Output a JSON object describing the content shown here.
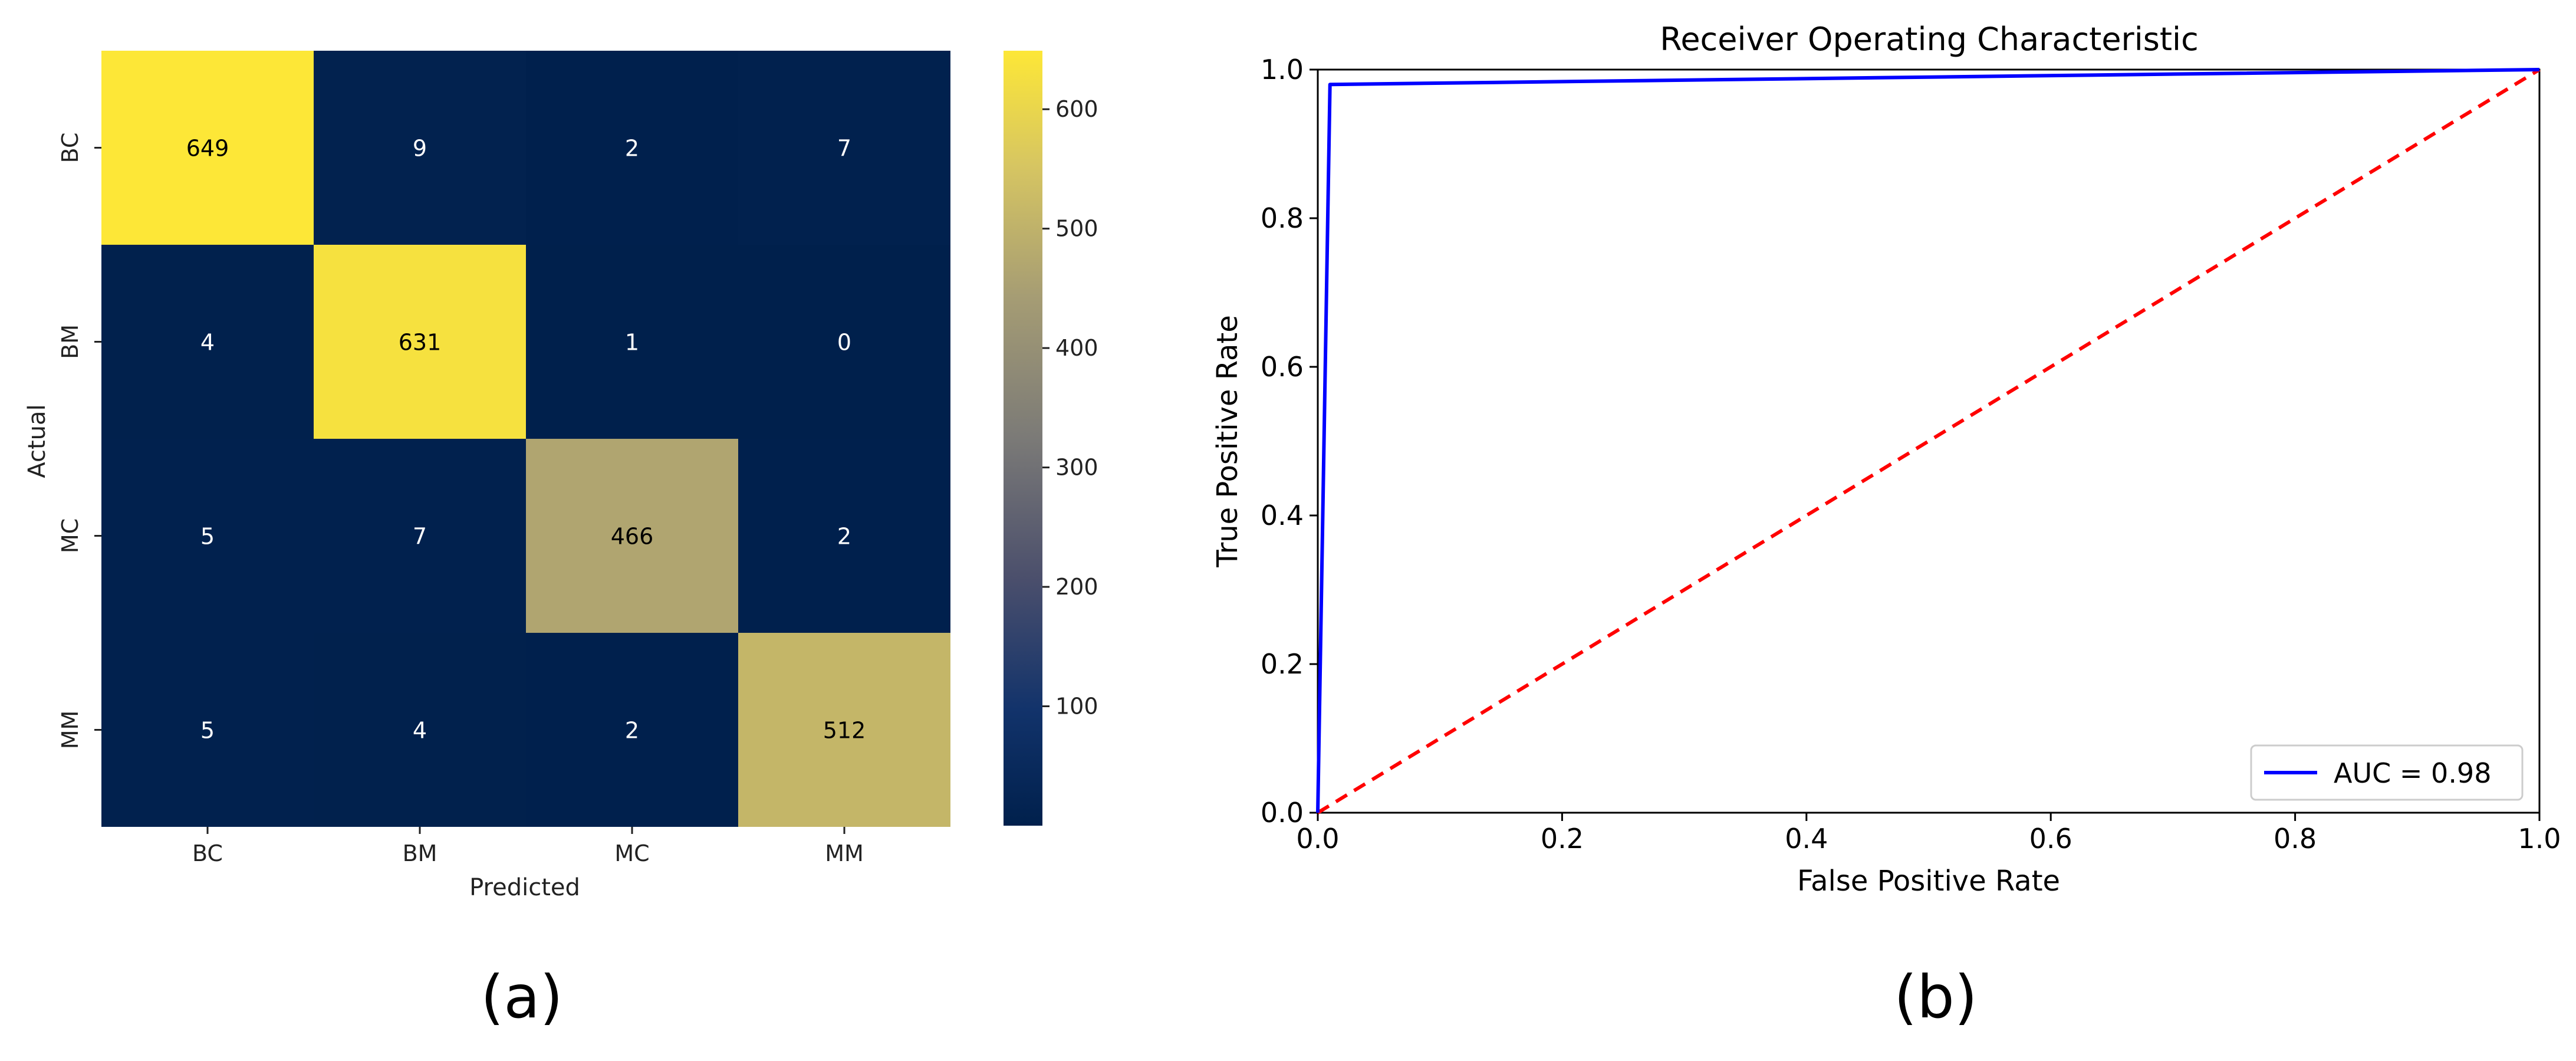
{
  "panel_a": {
    "label": "(a)",
    "colorbar_ticks": [
      "100",
      "200",
      "300",
      "400",
      "500",
      "600"
    ]
  },
  "panel_b": {
    "label": "(b)",
    "legend_label": "AUC = ",
    "legend_value": "0.98"
  },
  "colors": {
    "cmap_low": "#00204c",
    "cmap_high": "#fde737",
    "roc_line": "#0000ff",
    "chance_line": "#ff0000"
  },
  "chart_data": [
    {
      "type": "heatmap",
      "title": "",
      "xlabel": "Predicted",
      "ylabel": "Actual",
      "x_categories": [
        "BC",
        "BM",
        "MC",
        "MM"
      ],
      "y_categories": [
        "BC",
        "BM",
        "MC",
        "MM"
      ],
      "values": [
        [
          649,
          9,
          2,
          7
        ],
        [
          4,
          631,
          1,
          0
        ],
        [
          5,
          7,
          466,
          2
        ],
        [
          5,
          4,
          2,
          512
        ]
      ],
      "colormap": "cividis",
      "colorbar_range": [
        0,
        649
      ]
    },
    {
      "type": "line",
      "title": "Receiver Operating Characteristic",
      "xlabel": "False Positive Rate",
      "ylabel": "True Positive Rate",
      "xlim": [
        0.0,
        1.0
      ],
      "ylim": [
        0.0,
        1.0
      ],
      "xticks": [
        "0.0",
        "0.2",
        "0.4",
        "0.6",
        "0.8",
        "1.0"
      ],
      "yticks": [
        "0.0",
        "0.2",
        "0.4",
        "0.6",
        "0.8",
        "1.0"
      ],
      "legend_position": "lower-right",
      "series": [
        {
          "name": "AUC = 0.98",
          "style": "solid",
          "x": [
            0.0,
            0.01,
            1.0
          ],
          "y": [
            0.0,
            0.98,
            1.0
          ]
        },
        {
          "style": "dashed",
          "x": [
            0.0,
            1.0
          ],
          "y": [
            0.0,
            1.0
          ]
        }
      ]
    }
  ]
}
